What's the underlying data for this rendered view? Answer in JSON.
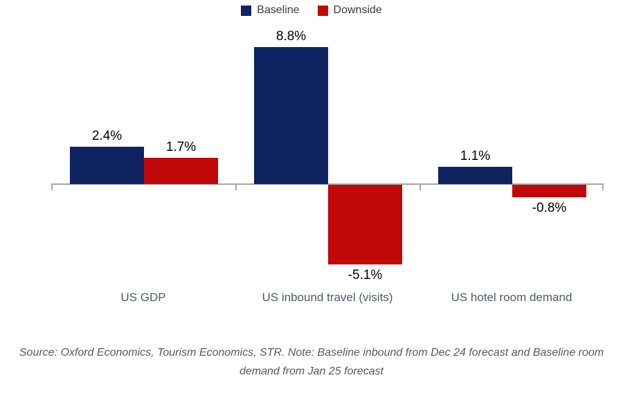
{
  "chart_data": {
    "type": "bar",
    "title": "",
    "categories": [
      "US GDP",
      "US inbound travel (visits)",
      "US hotel room demand"
    ],
    "series": [
      {
        "name": "Baseline",
        "color": "#0E2361",
        "values": [
          2.4,
          8.8,
          1.1
        ],
        "labels": [
          "2.4%",
          "8.8%",
          "1.1%"
        ]
      },
      {
        "name": "Downside",
        "color": "#C00808",
        "values": [
          1.7,
          -5.1,
          -0.8
        ],
        "labels": [
          "1.7%",
          "-5.1%",
          "-0.8%"
        ]
      }
    ],
    "unit": "%",
    "ylim": [
      -5.5,
      9.5
    ],
    "grid": false,
    "legend_position": "top-center",
    "axis_color": "#A6A6A6"
  },
  "footnote": {
    "line1": "Source: Oxford Economics, Tourism Economics, STR. Note: Baseline inbound from Dec 24 forecast and Baseline room",
    "line2": "demand from Jan 25 forecast"
  }
}
